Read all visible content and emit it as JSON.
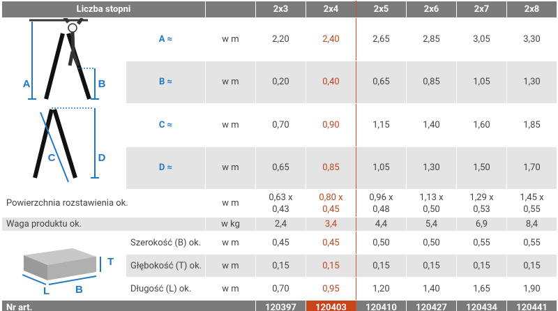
{
  "header": {
    "title": "Liczba stopni",
    "columns": [
      "2x3",
      "2x4",
      "2x5",
      "2x6",
      "2x7",
      "2x8"
    ]
  },
  "highlight_column": 1,
  "ladder_labels": [
    "A",
    "B"
  ],
  "ladder2_labels": [
    "C",
    "D"
  ],
  "box_labels": [
    "T",
    "L",
    "B"
  ],
  "ladder_rows": [
    {
      "label": "A ≈",
      "unit": "w m",
      "values": [
        "2,20",
        "2,40",
        "2,65",
        "2,85",
        "3,05",
        "3,30"
      ]
    },
    {
      "label": "B ≈",
      "unit": "w m",
      "values": [
        "0,20",
        "0,40",
        "0,65",
        "0,85",
        "1,05",
        "1,30"
      ]
    },
    {
      "label": "C ≈",
      "unit": "w m",
      "values": [
        "0,70",
        "0,90",
        "1,15",
        "1,40",
        "1,60",
        "1,85"
      ]
    },
    {
      "label": "D ≈",
      "unit": "w m",
      "values": [
        "0,65",
        "0,85",
        "1,05",
        "1,30",
        "1,50",
        "1,70"
      ]
    }
  ],
  "general_rows": [
    {
      "label": "Powierzchnia rozstawienia ok.",
      "unit": "w m",
      "values": [
        "0,63 x\n0,43",
        "0,80 x\n0,45",
        "0,96 x\n0,48",
        "1,13 x\n0,50",
        "1,29 x\n0,53",
        "1,45 x\n0,55"
      ]
    },
    {
      "label": "Waga produktu ok.",
      "unit": "w kg",
      "values": [
        "2,4",
        "3,4",
        "4,4",
        "5,4",
        "6,9",
        "8,4"
      ]
    }
  ],
  "box_rows": [
    {
      "label": "Szerokość (B) ok.",
      "unit": "w m",
      "values": [
        "0,45",
        "0,45",
        "0,50",
        "0,50",
        "0,55",
        "0,55"
      ]
    },
    {
      "label": "Głębokość (T) ok.",
      "unit": "w m",
      "values": [
        "0,15",
        "0,15",
        "0,15",
        "0,15",
        "0,15",
        "0,15"
      ]
    },
    {
      "label": "Długość (L) ok.",
      "unit": "w m",
      "values": [
        "0,70",
        "0,95",
        "1,20",
        "1,40",
        "1,65",
        "1,90"
      ]
    }
  ],
  "footer": {
    "label": "Nr art.",
    "values": [
      "120397",
      "120403",
      "120410",
      "120427",
      "120434",
      "120441"
    ]
  }
}
